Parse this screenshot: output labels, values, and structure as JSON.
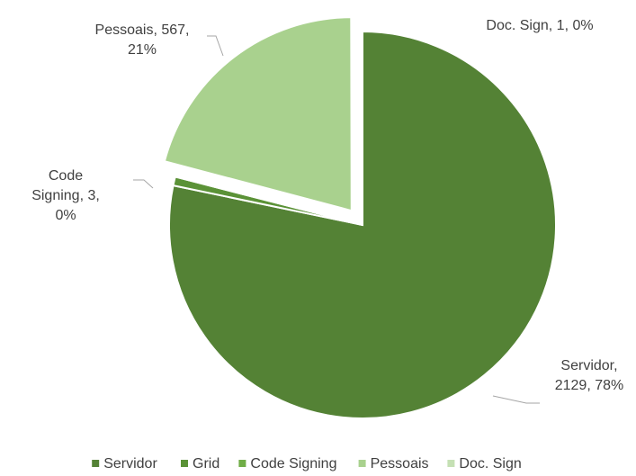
{
  "chart_data": {
    "type": "pie",
    "categories": [
      "Servidor",
      "Grid",
      "Code Signing",
      "Pessoais",
      "Doc. Sign"
    ],
    "values": [
      2129,
      20,
      3,
      567,
      1
    ],
    "colors": [
      "#548235",
      "#5b9237",
      "#70ad47",
      "#a9d18e",
      "#c5e0b4"
    ],
    "data_labels": [
      [
        "Servidor,",
        "2129, 78%"
      ],
      null,
      [
        "Code",
        "Signing, 3,",
        "0%"
      ],
      [
        "Pessoais, 567,",
        "21%"
      ],
      [
        "Doc. Sign, 1, 0%"
      ]
    ],
    "exploded": [
      false,
      false,
      false,
      true,
      true
    ],
    "legend": "bottom"
  }
}
